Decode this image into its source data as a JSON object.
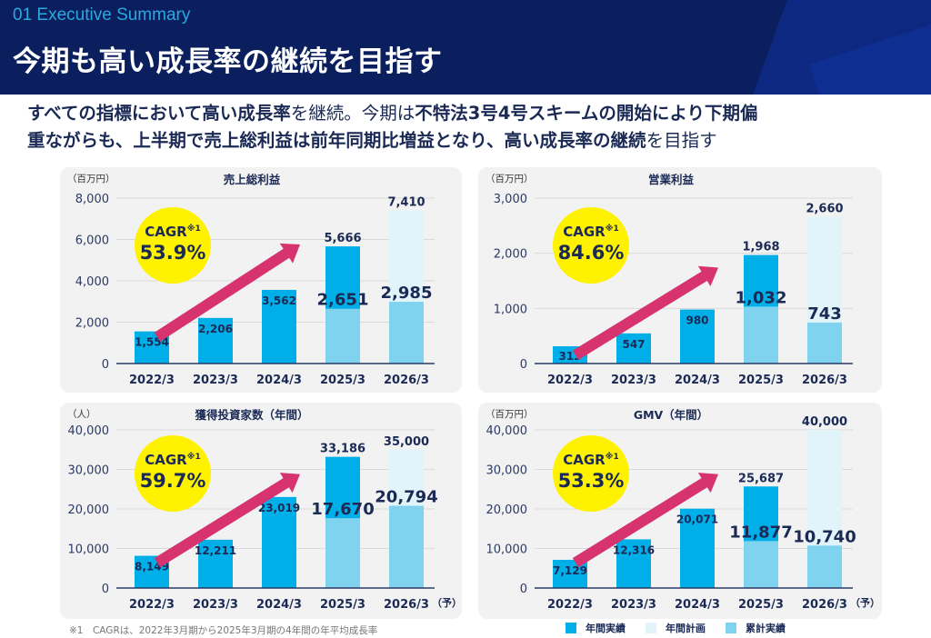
{
  "header": {
    "section_label": "01 Executive Summary",
    "title": "今期も高い成長率の継続を目指す"
  },
  "lead": {
    "line1_parts": [
      {
        "text": "すべての指標において高い成長率",
        "bold": true
      },
      {
        "text": "を継続。今期は",
        "bold": false
      },
      {
        "text": "不特法3号4号スキームの開始により下期偏",
        "bold": true
      }
    ],
    "line2_parts": [
      {
        "text": "重ながらも、上半期で売上総利益は前年同期比増益となり、高い成長率の継続",
        "bold": true
      },
      {
        "text": "を目指す",
        "bold": false
      }
    ]
  },
  "colors": {
    "actual": "#00aee8",
    "plan": "#e0f4fa",
    "cumulative": "#7fd3ef",
    "arrow": "#d6336f",
    "cagr_bg": "#fff200",
    "text_dark": "#1a2a55"
  },
  "chart_data": [
    {
      "type": "bar",
      "id": "gross-profit",
      "title": "売上総利益",
      "unit": "（百万円）",
      "categories": [
        "2022/3",
        "2023/3",
        "2024/3",
        "2025/3",
        "2026/3"
      ],
      "forecast_suffix": "",
      "ylim": [
        0,
        8000
      ],
      "yticks": [
        0,
        2000,
        4000,
        6000,
        8000
      ],
      "ytick_labels": [
        "0",
        "2,000",
        "4,000",
        "6,000",
        "8,000"
      ],
      "series": [
        {
          "name": "年間実績",
          "values": [
            1554,
            2206,
            3562,
            5666,
            null
          ]
        },
        {
          "name": "年間計画",
          "values": [
            null,
            null,
            null,
            null,
            7410
          ]
        },
        {
          "name": "累計実績",
          "values": [
            null,
            null,
            null,
            2651,
            2985
          ]
        }
      ],
      "labels": {
        "annual": [
          "1,554",
          "2,206",
          "3,562",
          "5,666",
          "7,410"
        ],
        "cumulative": [
          null,
          null,
          null,
          "2,651",
          "2,985"
        ]
      },
      "cagr": {
        "label": "CAGR",
        "note": "※1",
        "value": "53.9%"
      }
    },
    {
      "type": "bar",
      "id": "operating-profit",
      "title": "営業利益",
      "unit": "（百万円）",
      "categories": [
        "2022/3",
        "2023/3",
        "2024/3",
        "2025/3",
        "2026/3"
      ],
      "forecast_suffix": "",
      "ylim": [
        0,
        3000
      ],
      "yticks": [
        0,
        1000,
        2000,
        3000
      ],
      "ytick_labels": [
        "0",
        "1,000",
        "2,000",
        "3,000"
      ],
      "series": [
        {
          "name": "年間実績",
          "values": [
            313,
            547,
            980,
            1968,
            null
          ]
        },
        {
          "name": "年間計画",
          "values": [
            null,
            null,
            null,
            null,
            2660
          ]
        },
        {
          "name": "累計実績",
          "values": [
            null,
            null,
            null,
            1032,
            743
          ]
        }
      ],
      "labels": {
        "annual": [
          "313",
          "547",
          "980",
          "1,968",
          "2,660"
        ],
        "cumulative": [
          null,
          null,
          null,
          "1,032",
          "743"
        ]
      },
      "cagr": {
        "label": "CAGR",
        "note": "※1",
        "value": "84.6%"
      }
    },
    {
      "type": "bar",
      "id": "investors",
      "title": "獲得投資家数（年間）",
      "unit": "（人）",
      "categories": [
        "2022/3",
        "2023/3",
        "2024/3",
        "2025/3",
        "2026/3"
      ],
      "forecast_suffix": "（予）",
      "ylim": [
        0,
        40000
      ],
      "yticks": [
        0,
        10000,
        20000,
        30000,
        40000
      ],
      "ytick_labels": [
        "0",
        "10,000",
        "20,000",
        "30,000",
        "40,000"
      ],
      "series": [
        {
          "name": "年間実績",
          "values": [
            8149,
            12211,
            23019,
            33186,
            null
          ]
        },
        {
          "name": "年間計画",
          "values": [
            null,
            null,
            null,
            null,
            35000
          ]
        },
        {
          "name": "累計実績",
          "values": [
            null,
            null,
            null,
            17670,
            20794
          ]
        }
      ],
      "labels": {
        "annual": [
          "8,149",
          "12,211",
          "23,019",
          "33,186",
          "35,000"
        ],
        "cumulative": [
          null,
          null,
          null,
          "17,670",
          "20,794"
        ]
      },
      "cagr": {
        "label": "CAGR",
        "note": "※1",
        "value": "59.7%"
      }
    },
    {
      "type": "bar",
      "id": "gmv",
      "title": "GMV（年間）",
      "unit": "（百万円）",
      "categories": [
        "2022/3",
        "2023/3",
        "2024/3",
        "2025/3",
        "2026/3"
      ],
      "forecast_suffix": "（予）",
      "ylim": [
        0,
        40000
      ],
      "yticks": [
        0,
        10000,
        20000,
        30000,
        40000
      ],
      "ytick_labels": [
        "0",
        "10,000",
        "20,000",
        "30,000",
        "40,000"
      ],
      "series": [
        {
          "name": "年間実績",
          "values": [
            7129,
            12316,
            20071,
            25687,
            null
          ]
        },
        {
          "name": "年間計画",
          "values": [
            null,
            null,
            null,
            null,
            40000
          ]
        },
        {
          "name": "累計実績",
          "values": [
            null,
            null,
            null,
            11877,
            10740
          ]
        }
      ],
      "labels": {
        "annual": [
          "7,129",
          "12,316",
          "20,071",
          "25,687",
          "40,000"
        ],
        "cumulative": [
          null,
          null,
          null,
          "11,877",
          "10,740"
        ]
      },
      "cagr": {
        "label": "CAGR",
        "note": "※1",
        "value": "53.3%"
      }
    }
  ],
  "legend": {
    "items": [
      {
        "label": "年間実績",
        "color": "#00aee8"
      },
      {
        "label": "年間計画",
        "color": "#e0f4fa"
      },
      {
        "label": "累計実績",
        "color": "#7fd3ef"
      }
    ]
  },
  "footnote": "※1　CAGRは、2022年3月期から2025年3月期の4年間の年平均成長率"
}
